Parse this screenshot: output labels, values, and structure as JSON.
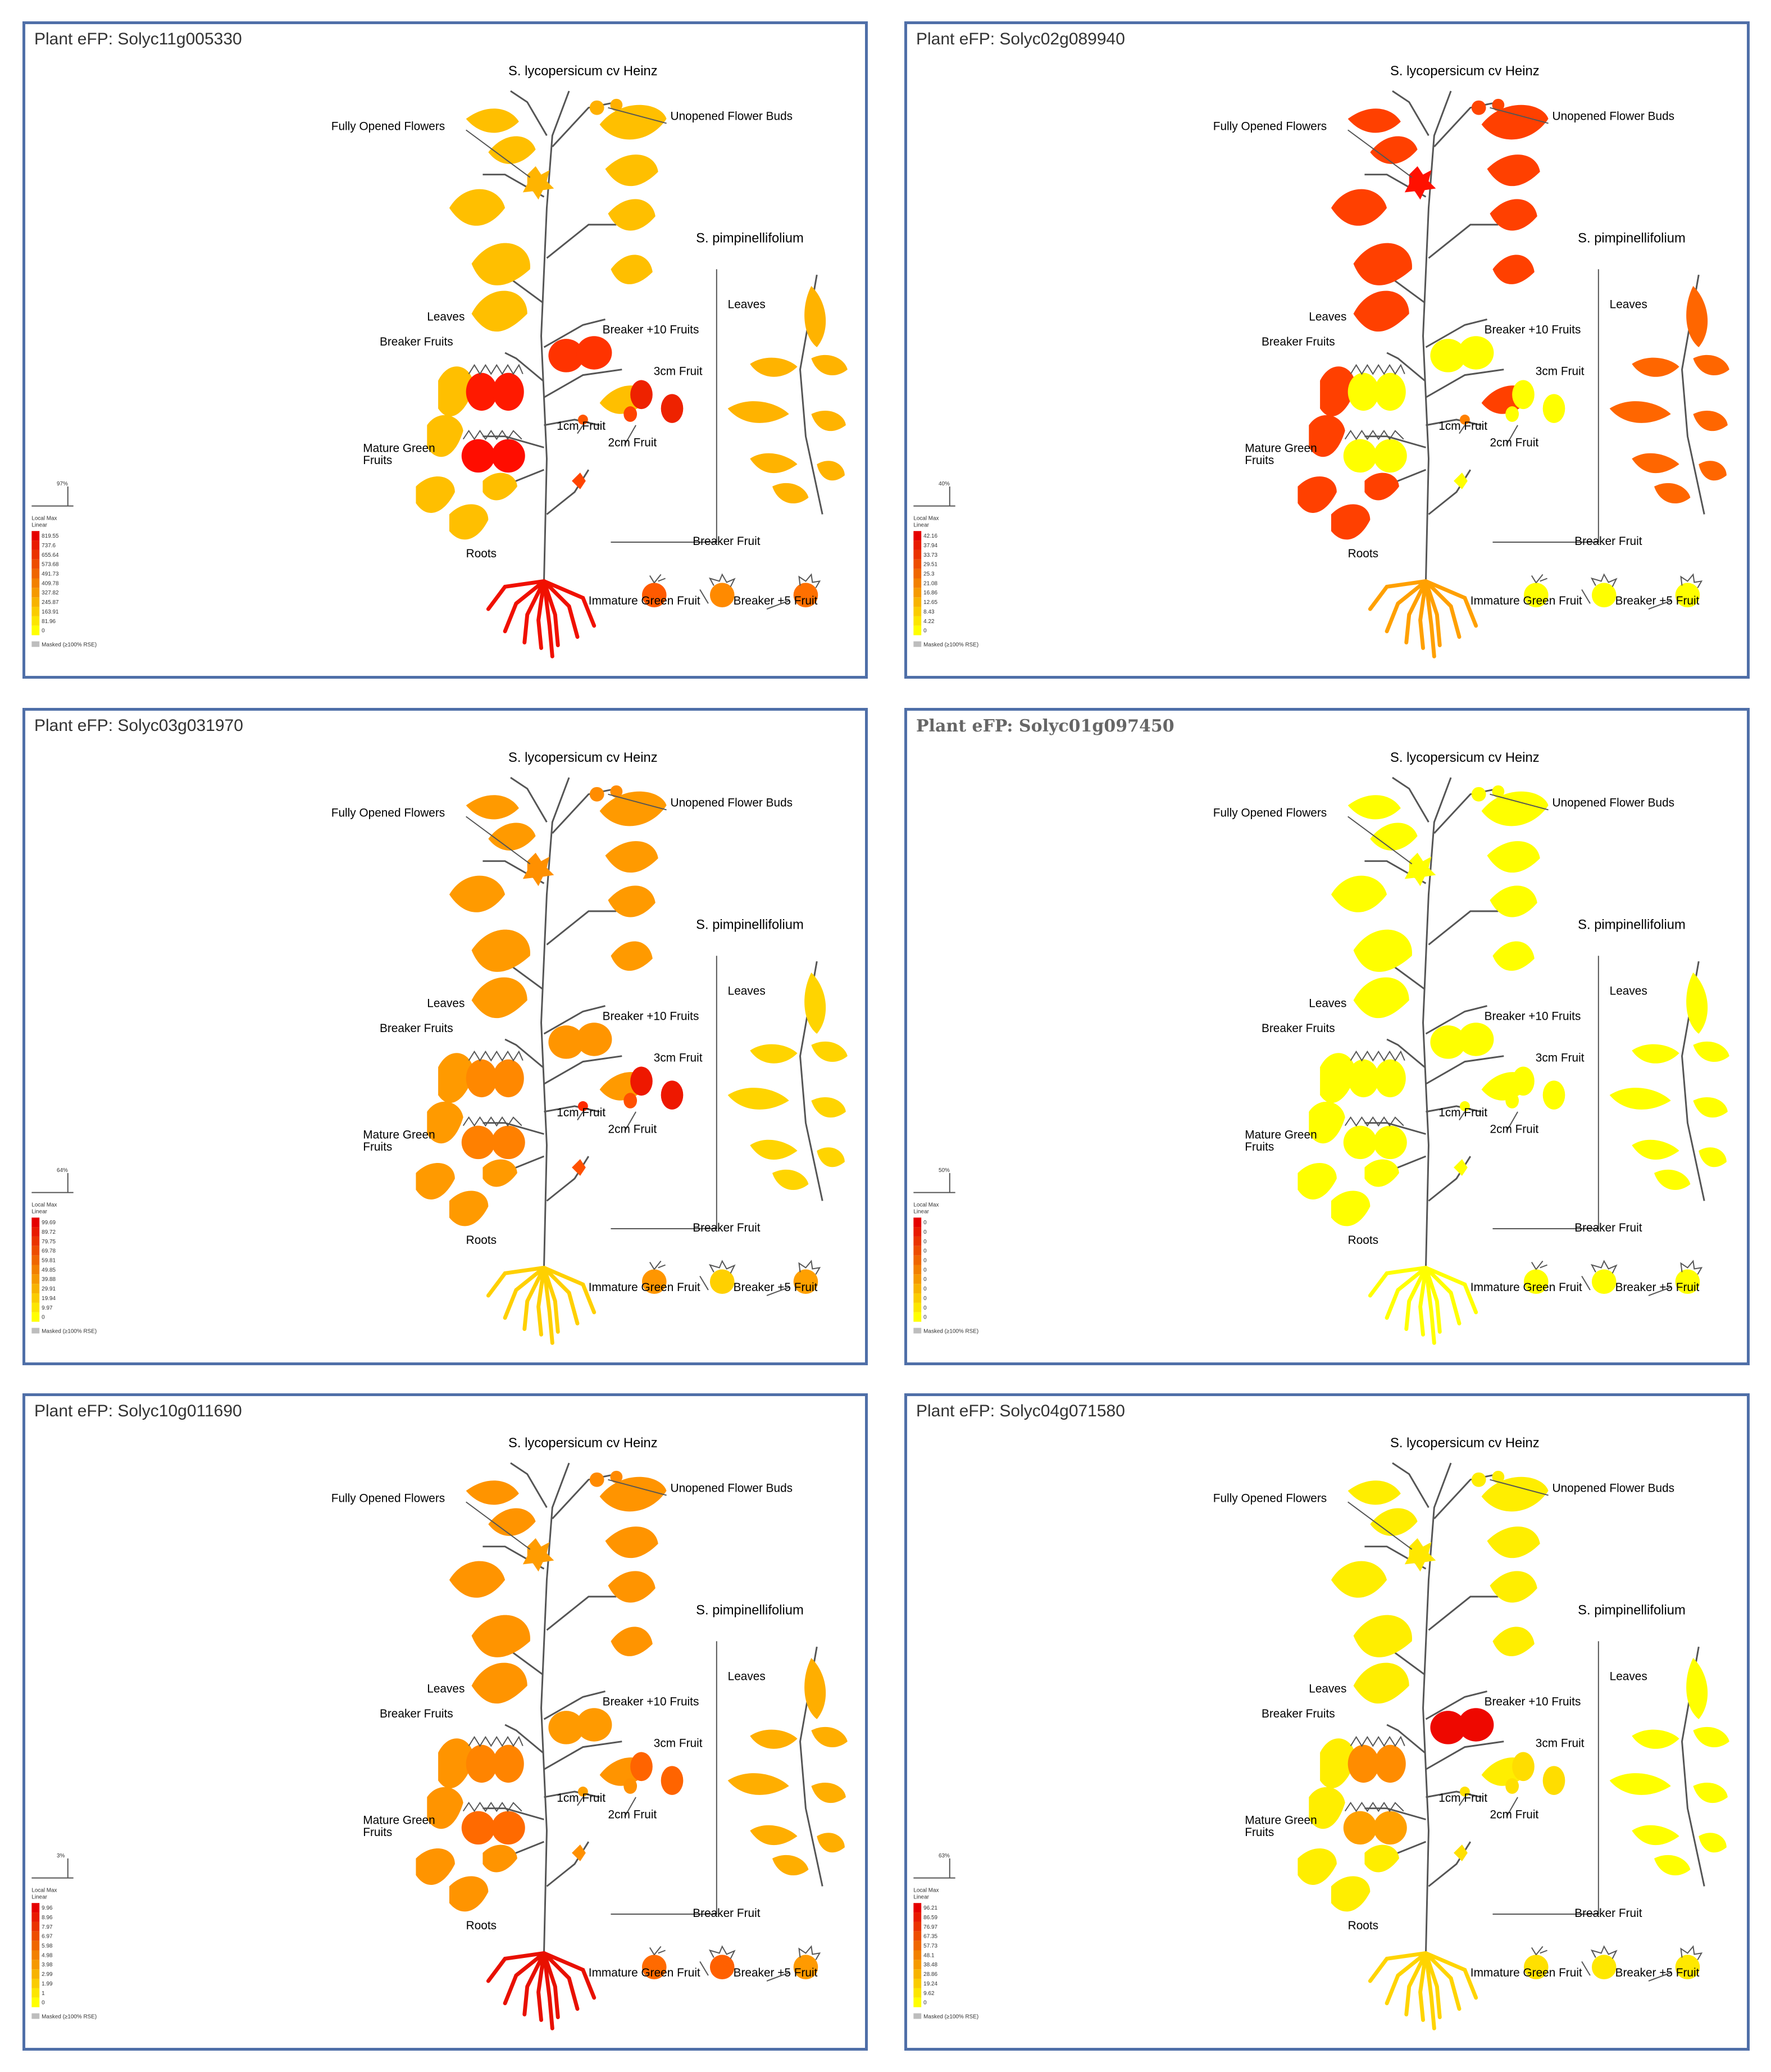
{
  "colors": {
    "border": "#4f6fa8",
    "scale_max": "#e50000",
    "scale_min": "#ffff00",
    "masked": "#bdbdbd"
  },
  "labels": {
    "species_main": "S. lycopersicum cv Heinz",
    "species_wild": "S. pimpinellifolium",
    "fully_opened_flowers": "Fully Opened Flowers",
    "unopened_flower_buds": "Unopened Flower Buds",
    "leaves": "Leaves",
    "leaves_wild": "Leaves",
    "breaker_fruits": "Breaker Fruits",
    "breaker_plus10": "Breaker +10 Fruits",
    "fruit_3cm": "3cm Fruit",
    "fruit_1cm": "1cm Fruit",
    "fruit_2cm": "2cm Fruit",
    "mature_green_1": "Mature Green",
    "mature_green_2": "Fruits",
    "roots": "Roots",
    "breaker_fruit_wild": "Breaker Fruit",
    "immature_green_wild": "Immature Green Fruit",
    "breaker_plus5_wild": "Breaker +5 Fruit",
    "local_max": "Local Max",
    "linear": "Linear",
    "masked": "Masked (≥100% RSE)"
  },
  "panels": [
    {
      "title": "Plant eFP: Solyc11g005330",
      "percent": "97%",
      "scale": [
        "819.55",
        "737.6",
        "655.64",
        "573.68",
        "491.73",
        "409.78",
        "327.82",
        "245.87",
        "163.91",
        "81.96",
        "0"
      ],
      "tissue_colors": {
        "leaves": "#ffbf00",
        "flowers": "#ffb400",
        "buds": "#ffb000",
        "breaker": "#ff1a00",
        "breaker10": "#ff3300",
        "fruit3cm": "#ee2200",
        "fruit1cm": "#ff5500",
        "fruit2cm": "#ff4400",
        "mature_green": "#ff0d00",
        "roots": "#f01000",
        "wild_leaves": "#ffb300",
        "wild_immature": "#ff5a00",
        "wild_breaker": "#ff8a00",
        "wild_breaker5": "#ff7000"
      }
    },
    {
      "title": "Plant eFP: Solyc02g089940",
      "percent": "40%",
      "scale": [
        "42.16",
        "37.94",
        "33.73",
        "29.51",
        "25.3",
        "21.08",
        "16.86",
        "12.65",
        "8.43",
        "4.22",
        "0"
      ],
      "tissue_colors": {
        "leaves": "#ff4000",
        "flowers": "#ff1000",
        "buds": "#ff4500",
        "breaker": "#ffff00",
        "breaker10": "#ffff00",
        "fruit3cm": "#ffff00",
        "fruit1cm": "#ff8000",
        "fruit2cm": "#ffff00",
        "mature_green": "#ffff00",
        "roots": "#ffa000",
        "wild_leaves": "#ff6600",
        "wild_immature": "#ffff00",
        "wild_breaker": "#ffff00",
        "wild_breaker5": "#ffff00"
      }
    },
    {
      "title": "Plant eFP: Solyc03g031970",
      "percent": "64%",
      "scale": [
        "99.69",
        "89.72",
        "79.75",
        "69.78",
        "59.81",
        "49.85",
        "39.88",
        "29.91",
        "19.94",
        "9.97",
        "0"
      ],
      "tissue_colors": {
        "leaves": "#ff9a00",
        "flowers": "#ff9000",
        "buds": "#ff8c00",
        "breaker": "#ff8800",
        "breaker10": "#ff9500",
        "fruit3cm": "#ee1800",
        "fruit1cm": "#ff2a00",
        "fruit2cm": "#ff5000",
        "mature_green": "#ff8000",
        "roots": "#ffd000",
        "wild_leaves": "#ffd400",
        "wild_immature": "#ff9600",
        "wild_breaker": "#ffd000",
        "wild_breaker5": "#ffa000"
      }
    },
    {
      "title": "Plant eFP: Solyc01g097450",
      "percent": "50%",
      "scale": [
        "0",
        "0",
        "0",
        "0",
        "0",
        "0",
        "0",
        "0",
        "0",
        "0",
        "0"
      ],
      "tissue_colors": {
        "leaves": "#ffff00",
        "flowers": "#ffff00",
        "buds": "#ffff00",
        "breaker": "#ffff00",
        "breaker10": "#ffff00",
        "fruit3cm": "#ffff00",
        "fruit1cm": "#ffff00",
        "fruit2cm": "#ffff00",
        "mature_green": "#ffff00",
        "roots": "#ffff00",
        "wild_leaves": "#ffff00",
        "wild_immature": "#ffff00",
        "wild_breaker": "#ffff00",
        "wild_breaker5": "#ffff00"
      }
    },
    {
      "title": "Plant eFP: Solyc10g011690",
      "percent": "3%",
      "scale": [
        "9.96",
        "8.96",
        "7.97",
        "6.97",
        "5.98",
        "4.98",
        "3.98",
        "2.99",
        "1.99",
        "1",
        "0"
      ],
      "tissue_colors": {
        "leaves": "#ff9400",
        "flowers": "#ff9c00",
        "buds": "#ff8a00",
        "breaker": "#ff8400",
        "breaker10": "#ff9a00",
        "fruit3cm": "#ff6400",
        "fruit1cm": "#ffa000",
        "fruit2cm": "#ff9000",
        "mature_green": "#ff6a00",
        "roots": "#e81000",
        "wild_leaves": "#ffae00",
        "wild_immature": "#ff6a00",
        "wild_breaker": "#ff6000",
        "wild_breaker5": "#ff9a00"
      }
    },
    {
      "title": "Plant eFP: Solyc04g071580",
      "percent": "63%",
      "scale": [
        "96.21",
        "86.59",
        "76.97",
        "67.35",
        "57.73",
        "48.1",
        "38.48",
        "28.86",
        "19.24",
        "9.62",
        "0"
      ],
      "tissue_colors": {
        "leaves": "#ffee00",
        "flowers": "#ffe800",
        "buds": "#ffee00",
        "breaker": "#ff8c00",
        "breaker10": "#ee0800",
        "fruit3cm": "#ffdd00",
        "fruit1cm": "#ffe000",
        "fruit2cm": "#ffe000",
        "mature_green": "#ffa000",
        "roots": "#ffd400",
        "wild_leaves": "#ffff00",
        "wild_immature": "#ffe000",
        "wild_breaker": "#ffe800",
        "wild_breaker5": "#ffe800"
      }
    }
  ]
}
